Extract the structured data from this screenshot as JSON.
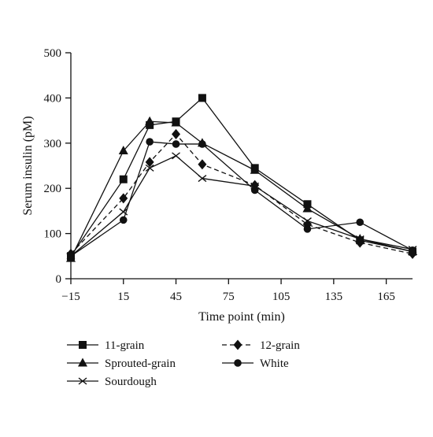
{
  "chart_data": {
    "type": "line",
    "title": "",
    "xlabel": "Time point (min)",
    "ylabel": "Serum insulin (pM)",
    "xlim": [
      -15,
      180
    ],
    "ylim": [
      0,
      500
    ],
    "xticks": [
      -15,
      15,
      45,
      75,
      105,
      135,
      165
    ],
    "xtick_labels": [
      "−15",
      "15",
      "45",
      "75",
      "105",
      "135",
      "165"
    ],
    "yticks": [
      0,
      100,
      200,
      300,
      400,
      500
    ],
    "ytick_labels": [
      "0",
      "100",
      "200",
      "300",
      "400",
      "500"
    ],
    "grid": false,
    "legend_position": "bottom",
    "series": [
      {
        "name": "11-grain",
        "marker": "square",
        "dash": "solid",
        "x": [
          -15,
          15,
          30,
          45,
          60,
          90,
          120,
          150,
          180
        ],
        "y": [
          50,
          220,
          340,
          348,
          400,
          245,
          165,
          85,
          60
        ]
      },
      {
        "name": "Sprouted-grain",
        "marker": "triangle",
        "dash": "solid",
        "x": [
          -15,
          15,
          30,
          45,
          60,
          90,
          120,
          150,
          180
        ],
        "y": [
          45,
          283,
          348,
          345,
          300,
          240,
          155,
          88,
          60
        ]
      },
      {
        "name": "Sourdough",
        "marker": "x",
        "dash": "solid",
        "x": [
          -15,
          15,
          30,
          45,
          60,
          90,
          120,
          150,
          180
        ],
        "y": [
          50,
          148,
          245,
          272,
          222,
          205,
          128,
          88,
          65
        ]
      },
      {
        "name": "12-grain",
        "marker": "diamond",
        "dash": "dashed",
        "x": [
          -15,
          15,
          30,
          45,
          60,
          90,
          120,
          150,
          180
        ],
        "y": [
          55,
          178,
          258,
          320,
          253,
          207,
          120,
          80,
          55
        ]
      },
      {
        "name": "White",
        "marker": "circle",
        "dash": "solid",
        "x": [
          -15,
          15,
          30,
          45,
          60,
          90,
          120,
          150,
          180
        ],
        "y": [
          50,
          130,
          303,
          298,
          298,
          196,
          110,
          125,
          63
        ]
      }
    ]
  }
}
